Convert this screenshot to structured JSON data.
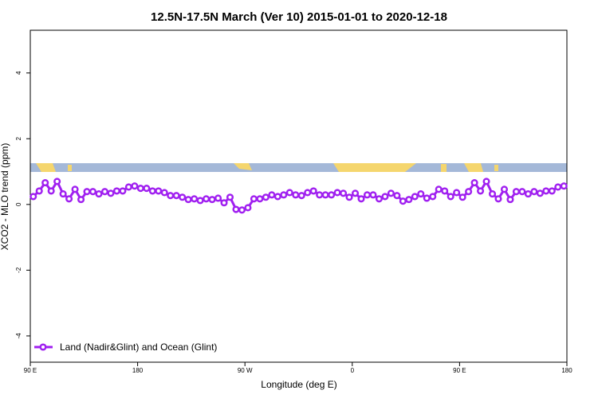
{
  "chart_data": {
    "type": "line",
    "title": "12.5N-17.5N March (Ver 10)   2015-01-01 to 2020-12-18",
    "xlabel": "Longitude (deg E)",
    "ylabel": "XCO2 - MLO trend (ppm)",
    "xlim": [
      90,
      540
    ],
    "ylim": [
      -4.8,
      5.3
    ],
    "xticks": [
      {
        "value": 90,
        "label": "90 E"
      },
      180,
      {
        "value": 270,
        "label": "90 W"
      },
      {
        "value": 360,
        "label": "0"
      },
      {
        "value": 450,
        "label": "90 E"
      },
      {
        "value": 540,
        "label": "180"
      }
    ],
    "yticks": [
      -4,
      -2,
      0,
      2,
      4
    ],
    "legend": "bottom-left",
    "x": [
      92.5,
      97.5,
      102.5,
      107.5,
      112.5,
      117.5,
      122.5,
      127.5,
      132.5,
      137.5,
      142.5,
      147.5,
      152.5,
      157.5,
      162.5,
      167.5,
      172.5,
      177.5,
      182.5,
      187.5,
      192.5,
      197.5,
      202.5,
      207.5,
      212.5,
      217.5,
      222.5,
      227.5,
      232.5,
      237.5,
      242.5,
      247.5,
      252.5,
      257.5,
      262.5,
      267.5,
      272.5,
      277.5,
      282.5,
      287.5,
      292.5,
      297.5,
      302.5,
      307.5,
      312.5,
      317.5,
      322.5,
      327.5,
      332.5,
      337.5,
      342.5,
      347.5,
      352.5,
      357.5,
      362.5,
      367.5,
      372.5,
      377.5,
      382.5,
      387.5,
      392.5,
      397.5,
      402.5,
      407.5,
      412.5,
      417.5,
      422.5,
      427.5,
      432.5,
      437.5,
      442.5,
      447.5,
      452.5,
      457.5,
      462.5,
      467.5,
      472.5,
      477.5,
      482.5,
      487.5,
      492.5,
      497.5,
      502.5,
      507.5,
      512.5,
      517.5,
      522.5,
      527.5,
      532.5,
      537.5
    ],
    "series": [
      {
        "name": "Land (Nadir&Glint) and Ocean (Glint)",
        "color": "#a020f0",
        "values": [
          0.24,
          0.41,
          0.66,
          0.41,
          0.7,
          0.32,
          0.17,
          0.46,
          0.15,
          0.39,
          0.39,
          0.32,
          0.39,
          0.34,
          0.41,
          0.41,
          0.53,
          0.56,
          0.49,
          0.49,
          0.41,
          0.41,
          0.36,
          0.27,
          0.27,
          0.22,
          0.15,
          0.17,
          0.12,
          0.17,
          0.15,
          0.19,
          0.05,
          0.22,
          -0.15,
          -0.17,
          -0.1,
          0.17,
          0.17,
          0.22,
          0.29,
          0.24,
          0.29,
          0.36,
          0.29,
          0.27,
          0.36,
          0.41,
          0.29,
          0.29,
          0.29,
          0.36,
          0.34,
          0.22,
          0.34,
          0.17,
          0.29,
          0.29,
          0.17,
          0.24,
          0.34,
          0.27,
          0.1,
          0.15,
          0.24,
          0.32,
          0.19,
          0.24,
          0.46,
          0.41,
          0.24,
          0.36,
          0.22,
          0.39,
          0.66,
          0.41,
          0.7,
          0.32,
          0.17,
          0.46,
          0.15,
          0.39,
          0.39,
          0.32,
          0.39,
          0.34,
          0.41,
          0.41,
          0.53,
          0.56
        ]
      }
    ]
  }
}
